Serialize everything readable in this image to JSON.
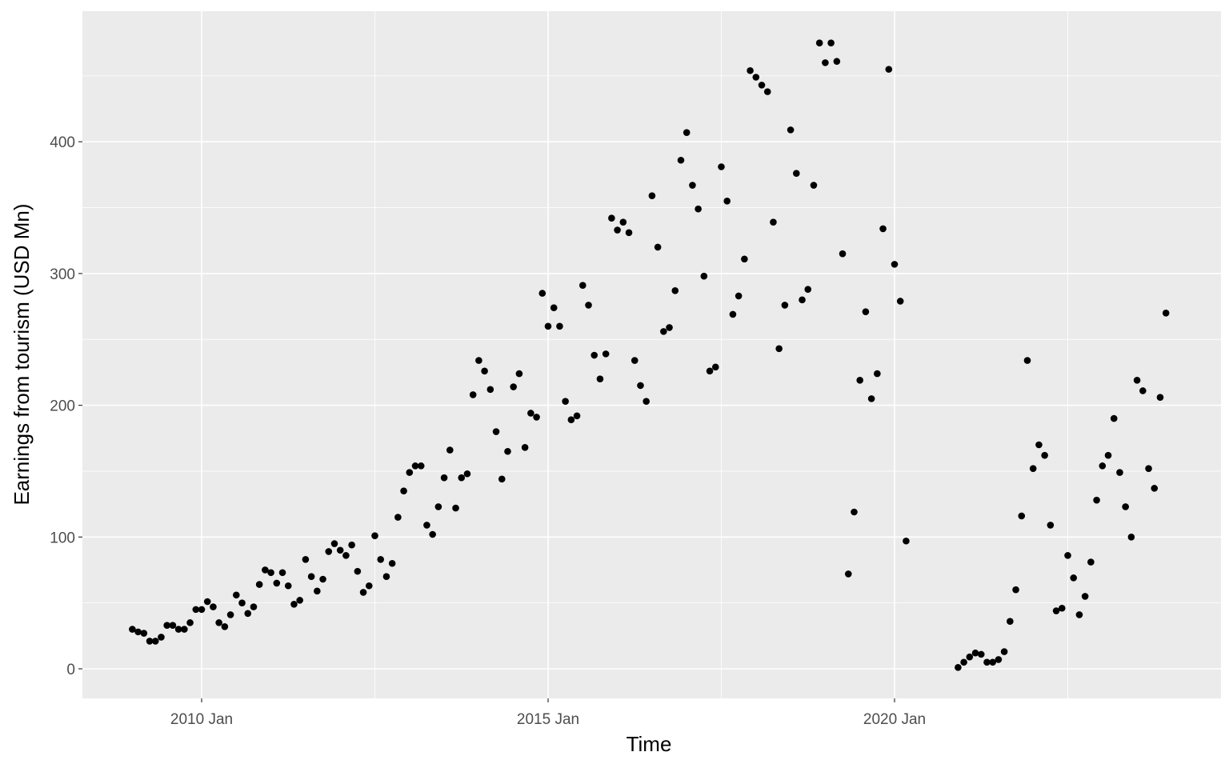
{
  "chart_data": {
    "type": "scatter",
    "title": "",
    "xlabel": "Time",
    "ylabel": "Earnings from tourism (USD Mn)",
    "x_ticks": [
      "2010 Jan",
      "2015 Jan",
      "2020 Jan"
    ],
    "y_ticks": [
      0,
      100,
      200,
      300,
      400
    ],
    "xlim": [
      "2008-04",
      "2024-04"
    ],
    "ylim": [
      -22,
      500
    ],
    "grid": true,
    "legend": "none",
    "colors": {
      "panel": "#EBEBEB",
      "grid": "#FFFFFF",
      "point": "#000000",
      "tick_text": "#4D4D4D"
    },
    "frequency": "monthly",
    "series_by_year": [
      {
        "year": 2009,
        "values": [
          30,
          28,
          27,
          21,
          21,
          24,
          33,
          33,
          30,
          30,
          35,
          45
        ]
      },
      {
        "year": 2010,
        "values": [
          45,
          51,
          47,
          35,
          32,
          41,
          56,
          50,
          42,
          47,
          64,
          75
        ]
      },
      {
        "year": 2011,
        "values": [
          73,
          65,
          73,
          63,
          49,
          52,
          83,
          70,
          59,
          68,
          89,
          95
        ]
      },
      {
        "year": 2012,
        "values": [
          90,
          86,
          94,
          74,
          58,
          63,
          101,
          83,
          70,
          80,
          115,
          135
        ]
      },
      {
        "year": 2013,
        "values": [
          149,
          154,
          154,
          109,
          102,
          123,
          145,
          166,
          122,
          145,
          148,
          208
        ]
      },
      {
        "year": 2014,
        "values": [
          234,
          226,
          212,
          180,
          144,
          165,
          214,
          224,
          168,
          194,
          191,
          285
        ]
      },
      {
        "year": 2015,
        "values": [
          260,
          274,
          260,
          203,
          189,
          192,
          291,
          276,
          238,
          220,
          239,
          342
        ]
      },
      {
        "year": 2016,
        "values": [
          333,
          339,
          331,
          234,
          215,
          203,
          359,
          320,
          256,
          259,
          287,
          386
        ]
      },
      {
        "year": 2017,
        "values": [
          407,
          367,
          349,
          298,
          226,
          229,
          381,
          355,
          269,
          283,
          311,
          454
        ]
      },
      {
        "year": 2018,
        "values": [
          449,
          443,
          438,
          339,
          243,
          276,
          409,
          376,
          280,
          288,
          367,
          475
        ]
      },
      {
        "year": 2019,
        "values": [
          460,
          475,
          461,
          315,
          72,
          119,
          219,
          271,
          205,
          224,
          334,
          455
        ]
      },
      {
        "year": 2020,
        "values": [
          307,
          279,
          97,
          null,
          null,
          null,
          null,
          null,
          null,
          null,
          null,
          1
        ]
      },
      {
        "year": 2021,
        "values": [
          5,
          9,
          12,
          11,
          5,
          5,
          7,
          13,
          36,
          60,
          116,
          234
        ]
      },
      {
        "year": 2022,
        "values": [
          152,
          170,
          162,
          109,
          44,
          46,
          86,
          69,
          41,
          55,
          81,
          128
        ]
      },
      {
        "year": 2023,
        "values": [
          154,
          162,
          190,
          149,
          123,
          100,
          219,
          211,
          152,
          137,
          206,
          270
        ]
      }
    ]
  }
}
